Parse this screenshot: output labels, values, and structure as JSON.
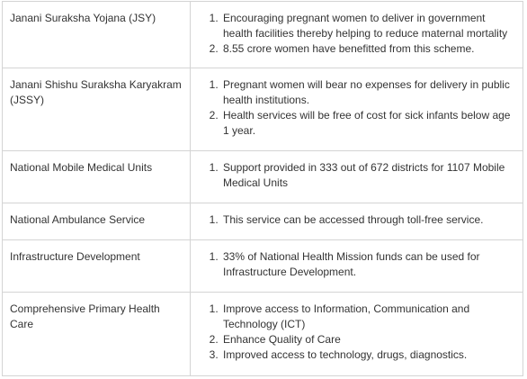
{
  "rows": [
    {
      "scheme": "Janani Suraksha Yojana (JSY)",
      "points": [
        "Encouraging pregnant women to deliver in government health facilities thereby helping to reduce maternal mortality",
        "8.55 crore women have benefitted from this scheme."
      ]
    },
    {
      "scheme": "Janani Shishu Suraksha Karyakram (JSSY)",
      "points": [
        "Pregnant women will bear no expenses for delivery in public health institutions.",
        "Health services will be free of cost for sick infants below age 1 year."
      ]
    },
    {
      "scheme": "National Mobile Medical Units",
      "points": [
        "Support provided in 333 out of 672 districts for 1107 Mobile Medical Units"
      ]
    },
    {
      "scheme": "National Ambulance Service",
      "points": [
        "This service can be accessed through toll-free service."
      ]
    },
    {
      "scheme": "Infrastructure Development",
      "points": [
        "33% of National Health Mission funds can be used for Infrastructure Development."
      ]
    },
    {
      "scheme": "Comprehensive Primary Health Care",
      "points": [
        "Improve access to Information, Communication and Technology (ICT)",
        "Enhance Quality of Care",
        "Improved access to technology, drugs, diagnostics."
      ]
    }
  ]
}
